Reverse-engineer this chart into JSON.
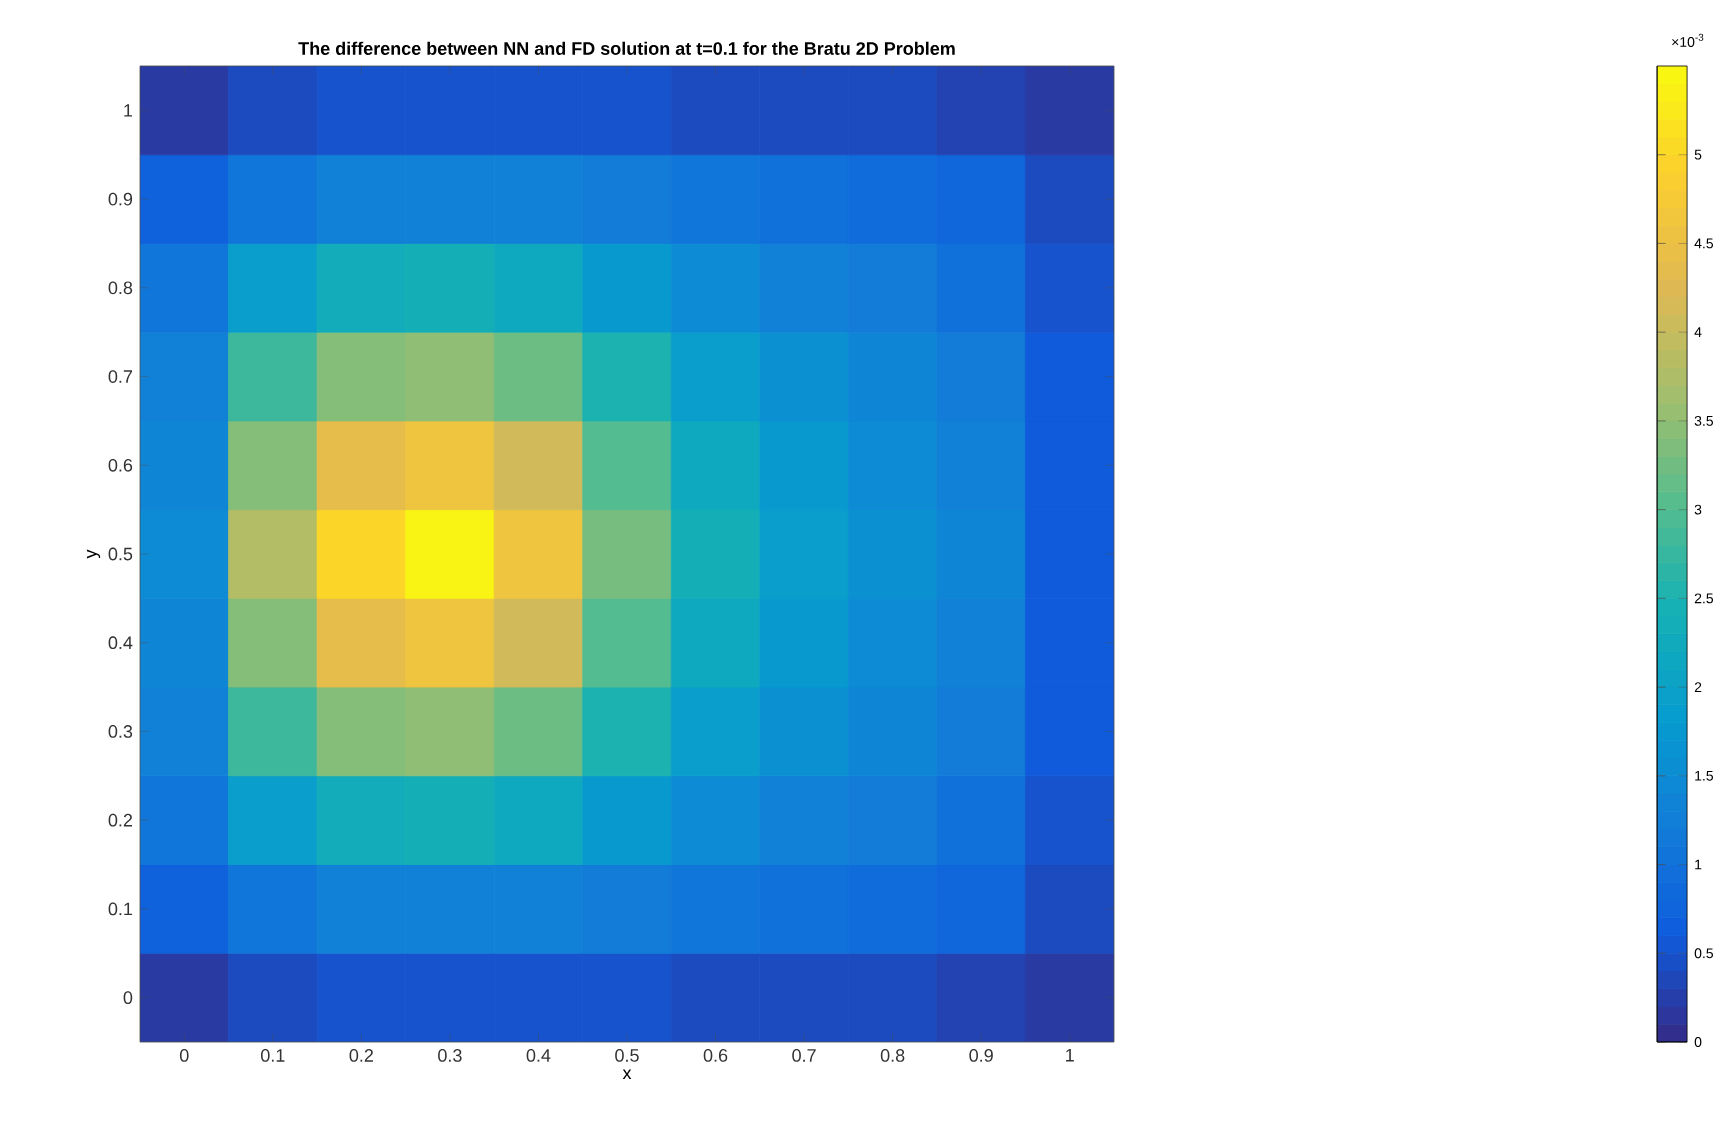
{
  "chart_data": {
    "type": "heatmap",
    "title": "The difference between NN and FD solution at t=0.1 for the Bratu 2D Problem",
    "xlabel": "x",
    "ylabel": "y",
    "categories": [
      "0",
      "0.1",
      "0.2",
      "0.3",
      "0.4",
      "0.5",
      "0.6",
      "0.7",
      "0.8",
      "0.9",
      "1"
    ],
    "y_categories": [
      "1",
      "0.9",
      "0.8",
      "0.7",
      "0.6",
      "0.5",
      "0.4",
      "0.3",
      "0.2",
      "0.1",
      "0"
    ],
    "cells": [
      [
        0.2,
        0.4,
        0.5,
        0.5,
        0.5,
        0.5,
        0.4,
        0.4,
        0.4,
        0.3,
        0.2
      ],
      [
        0.7,
        1.1,
        1.3,
        1.3,
        1.3,
        1.2,
        1.1,
        1.0,
        0.9,
        0.8,
        0.4
      ],
      [
        1.1,
        1.9,
        2.3,
        2.4,
        2.2,
        1.8,
        1.5,
        1.3,
        1.2,
        1.0,
        0.5
      ],
      [
        1.3,
        2.8,
        3.4,
        3.5,
        3.2,
        2.5,
        1.9,
        1.6,
        1.4,
        1.2,
        0.6
      ],
      [
        1.4,
        3.4,
        4.4,
        4.6,
        4.1,
        3.0,
        2.2,
        1.8,
        1.5,
        1.3,
        0.6
      ],
      [
        1.5,
        3.8,
        5.0,
        5.4,
        4.6,
        3.3,
        2.4,
        1.9,
        1.6,
        1.4,
        0.6
      ],
      [
        1.4,
        3.4,
        4.4,
        4.6,
        4.1,
        3.0,
        2.2,
        1.8,
        1.5,
        1.3,
        0.6
      ],
      [
        1.3,
        2.8,
        3.4,
        3.5,
        3.2,
        2.5,
        1.9,
        1.6,
        1.4,
        1.2,
        0.6
      ],
      [
        1.1,
        1.9,
        2.3,
        2.4,
        2.2,
        1.8,
        1.5,
        1.3,
        1.2,
        1.0,
        0.5
      ],
      [
        0.7,
        1.1,
        1.3,
        1.3,
        1.3,
        1.2,
        1.1,
        1.0,
        0.9,
        0.8,
        0.4
      ],
      [
        0.2,
        0.4,
        0.5,
        0.5,
        0.5,
        0.5,
        0.4,
        0.4,
        0.4,
        0.3,
        0.2
      ]
    ],
    "clim": [
      0,
      5.5
    ],
    "cticks": [
      0,
      0.5,
      1,
      1.5,
      2,
      2.5,
      3,
      3.5,
      4,
      4.5,
      5
    ],
    "annotations": [
      "×10$^{-3}$"
    ]
  }
}
